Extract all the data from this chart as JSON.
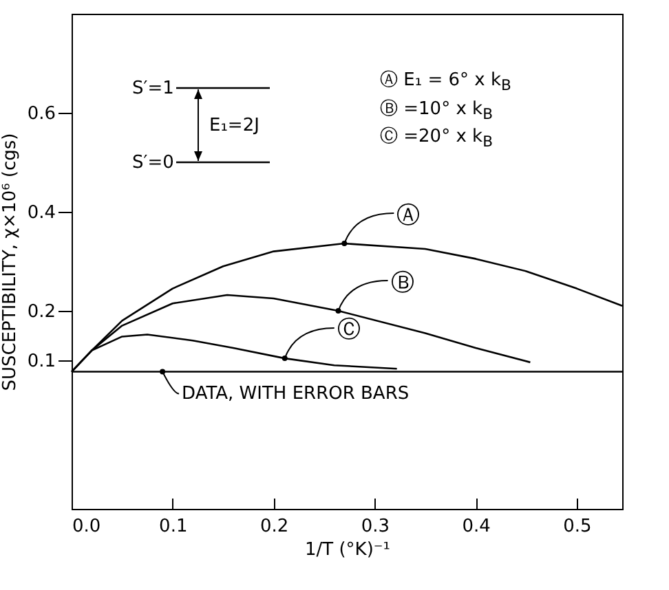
{
  "chart_data": {
    "type": "line",
    "xlabel": "1/T (°K)⁻¹",
    "ylabel": "SUSCEPTIBILITY, χ×10⁶ (cgs)",
    "xlim": [
      0,
      0.545
    ],
    "xticks": [
      {
        "value": 0,
        "label": "0.0"
      },
      0.1,
      0.2,
      0.3,
      0.4,
      0.5
    ],
    "ylim": [
      -0.2,
      0.8
    ],
    "yticks": [
      0.1,
      0.2,
      0.4,
      0.6
    ],
    "series": [
      {
        "color": "#000000",
        "x": [
          0,
          0.02,
          0.05,
          0.1,
          0.15,
          0.2,
          0.27,
          0.35,
          0.4,
          0.45,
          0.5,
          0.545
        ],
        "values": [
          0.077,
          0.12,
          0.18,
          0.245,
          0.29,
          0.32,
          0.336,
          0.325,
          0.305,
          0.28,
          0.245,
          0.21
        ]
      },
      {
        "color": "#000000",
        "x": [
          0,
          0.02,
          0.05,
          0.1,
          0.154,
          0.2,
          0.264,
          0.35,
          0.4,
          0.454
        ],
        "values": [
          0.077,
          0.12,
          0.17,
          0.215,
          0.232,
          0.225,
          0.2,
          0.155,
          0.125,
          0.096
        ]
      },
      {
        "color": "#000000",
        "x": [
          0,
          0.02,
          0.05,
          0.075,
          0.12,
          0.16,
          0.211,
          0.26,
          0.322
        ],
        "values": [
          0.077,
          0.12,
          0.148,
          0.152,
          0.14,
          0.125,
          0.104,
          0.09,
          0.083
        ]
      },
      {
        "color": "#000000",
        "x": [
          0,
          0.545
        ],
        "values": [
          0.077,
          0.077
        ]
      }
    ],
    "annotations": [
      "S′=1",
      "S′=0",
      "E₁=2J",
      "Ⓐ E₁ = 6° x k$_{B}$",
      "Ⓑ =10° x k$_{B}$",
      "Ⓒ =20° x k$_{B}$",
      {
        "text": "Ⓐ",
        "x": 0.27,
        "y": 0.336
      },
      {
        "text": "Ⓑ",
        "x": 0.264,
        "y": 0.2
      },
      {
        "text": "Ⓒ",
        "x": 0.211,
        "y": 0.104
      },
      {
        "text": "DATA, WITH ERROR BARS",
        "x": 0.09,
        "y": 0.077
      }
    ]
  }
}
